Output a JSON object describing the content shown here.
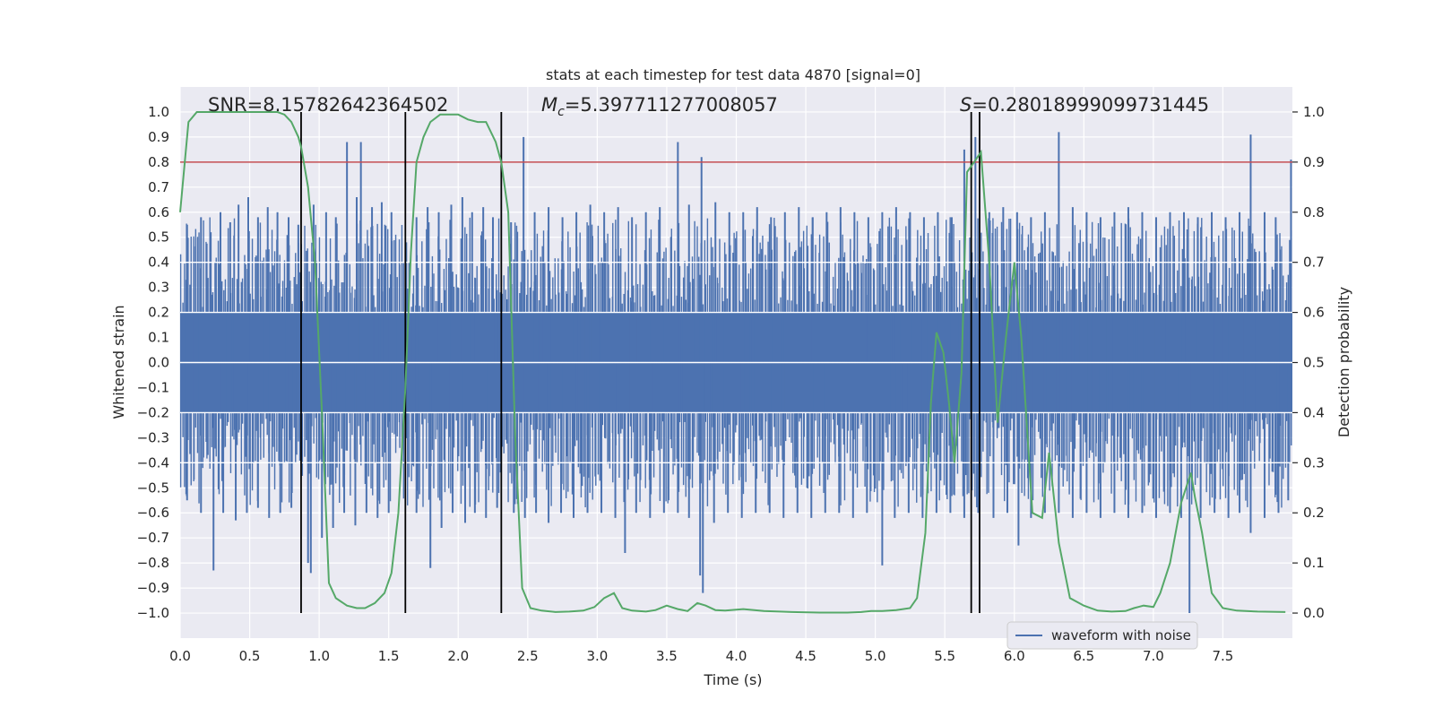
{
  "chart_data": {
    "type": "line",
    "title": "stats at each timestep for test data 4870 [signal=0]",
    "xlabel": "Time (s)",
    "ylabel": "Whitened strain",
    "y2label": "Detection probability",
    "xlim": [
      0.0,
      8.0
    ],
    "ylim": [
      -1.1,
      1.1
    ],
    "y2lim": [
      -0.05,
      1.05
    ],
    "grid": true,
    "xticks": [
      0.0,
      0.5,
      1.0,
      1.5,
      2.0,
      2.5,
      3.0,
      3.5,
      4.0,
      4.5,
      5.0,
      5.5,
      6.0,
      6.5,
      7.0,
      7.5
    ],
    "xtick_labels": [
      "0.0",
      "0.5",
      "1.0",
      "1.5",
      "2.0",
      "2.5",
      "3.0",
      "3.5",
      "4.0",
      "4.5",
      "5.0",
      "5.5",
      "6.0",
      "6.5",
      "7.0",
      "7.5"
    ],
    "yticks": [
      1.0,
      0.9,
      0.8,
      0.7,
      0.6,
      0.5,
      0.4,
      0.3,
      0.2,
      0.1,
      0.0,
      -0.1,
      -0.2,
      -0.3,
      -0.4,
      -0.5,
      -0.6,
      -0.7,
      -0.8,
      -0.9,
      -1.0
    ],
    "ytick_labels": [
      "1.0",
      "0.9",
      "0.8",
      "0.7",
      "0.6",
      "0.5",
      "0.4",
      "0.3",
      "0.2",
      "0.1",
      "0.0",
      "−0.1",
      "−0.2",
      "−0.3",
      "−0.4",
      "−0.5",
      "−0.6",
      "−0.7",
      "−0.8",
      "−0.9",
      "−1.0"
    ],
    "y2ticks": [
      1.0,
      0.9,
      0.8,
      0.7,
      0.6,
      0.5,
      0.4,
      0.3,
      0.2,
      0.1,
      0.0
    ],
    "y2tick_labels": [
      "1.0",
      "0.9",
      "0.8",
      "0.7",
      "0.6",
      "0.5",
      "0.4",
      "0.3",
      "0.2",
      "0.1",
      "0.0"
    ],
    "annotations": {
      "snr": "SNR=8.15782642364502",
      "mc_symbol": "M",
      "mc_sub": "c",
      "mc_value": "=5.397711277008057",
      "s_symbol": "S",
      "s_value": "=0.28018999099731445"
    },
    "legend": {
      "label": "waveform with noise",
      "placement": "lower-right"
    },
    "threshold": {
      "value": 0.9,
      "axis": "y2",
      "color": "#c44e52"
    },
    "vlines": [
      0.87,
      1.62,
      2.31,
      5.69,
      5.75
    ],
    "noise_series": {
      "name": "waveform with noise",
      "color": "#4c72b0",
      "band": [
        -0.2,
        0.2
      ],
      "spikes_up": [
        [
          0.05,
          0.55
        ],
        [
          0.15,
          0.58
        ],
        [
          0.22,
          0.52
        ],
        [
          0.29,
          0.6
        ],
        [
          0.36,
          0.56
        ],
        [
          0.42,
          0.63
        ],
        [
          0.49,
          0.66
        ],
        [
          0.56,
          0.58
        ],
        [
          0.63,
          0.62
        ],
        [
          0.7,
          0.6
        ],
        [
          0.78,
          0.58
        ],
        [
          0.85,
          0.55
        ],
        [
          0.96,
          0.63
        ],
        [
          1.05,
          0.6
        ],
        [
          1.12,
          0.58
        ],
        [
          1.2,
          0.88
        ],
        [
          1.27,
          0.66
        ],
        [
          1.3,
          0.88
        ],
        [
          1.38,
          0.62
        ],
        [
          1.45,
          0.64
        ],
        [
          1.52,
          0.6
        ],
        [
          1.7,
          0.58
        ],
        [
          1.78,
          0.62
        ],
        [
          1.86,
          0.6
        ],
        [
          1.95,
          0.63
        ],
        [
          2.03,
          0.66
        ],
        [
          2.1,
          0.6
        ],
        [
          2.18,
          0.62
        ],
        [
          2.25,
          0.58
        ],
        [
          2.38,
          0.56
        ],
        [
          2.47,
          0.9
        ],
        [
          2.55,
          0.6
        ],
        [
          2.65,
          0.62
        ],
        [
          2.75,
          0.58
        ],
        [
          2.85,
          0.6
        ],
        [
          2.95,
          0.63
        ],
        [
          3.05,
          0.6
        ],
        [
          3.15,
          0.62
        ],
        [
          3.25,
          0.58
        ],
        [
          3.35,
          0.6
        ],
        [
          3.45,
          0.62
        ],
        [
          3.58,
          0.88
        ],
        [
          3.66,
          0.63
        ],
        [
          3.75,
          0.82
        ],
        [
          3.85,
          0.64
        ],
        [
          3.95,
          0.6
        ],
        [
          4.05,
          0.6
        ],
        [
          4.15,
          0.62
        ],
        [
          4.25,
          0.58
        ],
        [
          4.35,
          0.6
        ],
        [
          4.45,
          0.62
        ],
        [
          4.55,
          0.58
        ],
        [
          4.65,
          0.6
        ],
        [
          4.75,
          0.62
        ],
        [
          4.85,
          0.6
        ],
        [
          4.95,
          0.58
        ],
        [
          5.05,
          0.6
        ],
        [
          5.15,
          0.62
        ],
        [
          5.25,
          0.6
        ],
        [
          5.35,
          0.58
        ],
        [
          5.45,
          0.6
        ],
        [
          5.55,
          0.58
        ],
        [
          5.64,
          0.85
        ],
        [
          5.72,
          0.9
        ],
        [
          5.82,
          0.6
        ],
        [
          5.92,
          0.62
        ],
        [
          6.02,
          0.6
        ],
        [
          6.12,
          0.58
        ],
        [
          6.22,
          0.6
        ],
        [
          6.32,
          0.92
        ],
        [
          6.42,
          0.62
        ],
        [
          6.52,
          0.6
        ],
        [
          6.62,
          0.58
        ],
        [
          6.72,
          0.6
        ],
        [
          6.82,
          0.62
        ],
        [
          6.92,
          0.6
        ],
        [
          7.02,
          0.58
        ],
        [
          7.12,
          0.6
        ],
        [
          7.22,
          0.6
        ],
        [
          7.32,
          0.58
        ],
        [
          7.42,
          0.6
        ],
        [
          7.52,
          0.58
        ],
        [
          7.62,
          0.6
        ],
        [
          7.7,
          0.91
        ],
        [
          7.8,
          0.6
        ],
        [
          7.88,
          0.58
        ],
        [
          7.99,
          0.81
        ]
      ],
      "spikes_down": [
        [
          0.05,
          -0.55
        ],
        [
          0.15,
          -0.6
        ],
        [
          0.24,
          -0.83
        ],
        [
          0.31,
          -0.6
        ],
        [
          0.4,
          -0.63
        ],
        [
          0.48,
          -0.6
        ],
        [
          0.56,
          -0.58
        ],
        [
          0.64,
          -0.62
        ],
        [
          0.72,
          -0.6
        ],
        [
          0.8,
          -0.58
        ],
        [
          0.92,
          -0.8
        ],
        [
          0.94,
          -0.84
        ],
        [
          1.02,
          -0.7
        ],
        [
          1.1,
          -0.66
        ],
        [
          1.18,
          -0.6
        ],
        [
          1.26,
          -0.65
        ],
        [
          1.34,
          -0.6
        ],
        [
          1.42,
          -0.62
        ],
        [
          1.5,
          -0.6
        ],
        [
          1.7,
          -0.6
        ],
        [
          1.8,
          -0.82
        ],
        [
          1.88,
          -0.66
        ],
        [
          1.96,
          -0.6
        ],
        [
          2.05,
          -0.64
        ],
        [
          2.12,
          -0.6
        ],
        [
          2.2,
          -0.62
        ],
        [
          2.28,
          -0.58
        ],
        [
          2.4,
          -0.6
        ],
        [
          2.48,
          -0.62
        ],
        [
          2.56,
          -0.6
        ],
        [
          2.65,
          -0.64
        ],
        [
          2.74,
          -0.6
        ],
        [
          2.83,
          -0.62
        ],
        [
          2.93,
          -0.6
        ],
        [
          3.03,
          -0.6
        ],
        [
          3.13,
          -0.62
        ],
        [
          3.2,
          -0.76
        ],
        [
          3.28,
          -0.6
        ],
        [
          3.38,
          -0.62
        ],
        [
          3.48,
          -0.6
        ],
        [
          3.58,
          -0.6
        ],
        [
          3.66,
          -0.62
        ],
        [
          3.74,
          -0.85
        ],
        [
          3.76,
          -0.92
        ],
        [
          3.84,
          -0.64
        ],
        [
          3.94,
          -0.6
        ],
        [
          4.04,
          -0.62
        ],
        [
          4.14,
          -0.6
        ],
        [
          4.24,
          -0.6
        ],
        [
          4.34,
          -0.62
        ],
        [
          4.44,
          -0.6
        ],
        [
          4.54,
          -0.62
        ],
        [
          4.64,
          -0.6
        ],
        [
          4.74,
          -0.6
        ],
        [
          4.84,
          -0.62
        ],
        [
          4.94,
          -0.6
        ],
        [
          5.05,
          -0.81
        ],
        [
          5.14,
          -0.62
        ],
        [
          5.24,
          -0.6
        ],
        [
          5.34,
          -0.62
        ],
        [
          5.44,
          -0.6
        ],
        [
          5.54,
          -0.6
        ],
        [
          5.64,
          -0.62
        ],
        [
          5.74,
          -0.6
        ],
        [
          5.85,
          -0.62
        ],
        [
          5.95,
          -0.6
        ],
        [
          6.03,
          -0.73
        ],
        [
          6.12,
          -0.62
        ],
        [
          6.22,
          -0.6
        ],
        [
          6.32,
          -0.6
        ],
        [
          6.42,
          -0.62
        ],
        [
          6.52,
          -0.6
        ],
        [
          6.62,
          -0.62
        ],
        [
          6.72,
          -0.6
        ],
        [
          6.82,
          -0.62
        ],
        [
          6.92,
          -0.6
        ],
        [
          7.02,
          -0.62
        ],
        [
          7.12,
          -0.6
        ],
        [
          7.2,
          -0.62
        ],
        [
          7.26,
          -1.0
        ],
        [
          7.34,
          -0.62
        ],
        [
          7.44,
          -0.6
        ],
        [
          7.54,
          -0.62
        ],
        [
          7.62,
          -0.6
        ],
        [
          7.7,
          -0.68
        ],
        [
          7.8,
          -0.62
        ],
        [
          7.9,
          -0.6
        ],
        [
          7.97,
          -0.55
        ]
      ]
    },
    "probability_series": {
      "name": "detection probability",
      "color": "#55a868",
      "x": [
        0.0,
        0.06,
        0.12,
        0.2,
        0.3,
        0.4,
        0.5,
        0.6,
        0.7,
        0.75,
        0.8,
        0.85,
        0.87,
        0.92,
        0.97,
        1.02,
        1.07,
        1.12,
        1.2,
        1.27,
        1.33,
        1.4,
        1.47,
        1.52,
        1.57,
        1.62,
        1.66,
        1.7,
        1.75,
        1.8,
        1.87,
        1.94,
        2.0,
        2.07,
        2.14,
        2.2,
        2.27,
        2.31,
        2.36,
        2.41,
        2.46,
        2.52,
        2.6,
        2.7,
        2.8,
        2.9,
        2.98,
        3.05,
        3.12,
        3.18,
        3.25,
        3.35,
        3.42,
        3.5,
        3.58,
        3.65,
        3.72,
        3.78,
        3.85,
        3.92,
        4.05,
        4.2,
        4.4,
        4.6,
        4.8,
        4.9,
        4.97,
        5.05,
        5.15,
        5.25,
        5.3,
        5.36,
        5.4,
        5.44,
        5.49,
        5.53,
        5.57,
        5.62,
        5.66,
        5.71,
        5.76,
        5.82,
        5.88,
        5.94,
        6.0,
        6.05,
        6.13,
        6.2,
        6.25,
        6.32,
        6.4,
        6.5,
        6.6,
        6.7,
        6.8,
        6.86,
        6.93,
        7.0,
        7.05,
        7.12,
        7.2,
        7.27,
        7.3,
        7.35,
        7.42,
        7.5,
        7.6,
        7.75,
        7.95
      ],
      "y": [
        0.8,
        0.98,
        1.0,
        1.0,
        1.0,
        1.0,
        1.0,
        1.0,
        1.0,
        0.995,
        0.98,
        0.95,
        0.93,
        0.85,
        0.7,
        0.4,
        0.06,
        0.03,
        0.015,
        0.01,
        0.01,
        0.02,
        0.04,
        0.08,
        0.2,
        0.45,
        0.72,
        0.9,
        0.95,
        0.98,
        0.995,
        0.995,
        0.995,
        0.985,
        0.98,
        0.98,
        0.94,
        0.9,
        0.8,
        0.35,
        0.05,
        0.01,
        0.005,
        0.002,
        0.003,
        0.005,
        0.012,
        0.03,
        0.04,
        0.01,
        0.005,
        0.003,
        0.006,
        0.015,
        0.008,
        0.004,
        0.02,
        0.015,
        0.006,
        0.005,
        0.008,
        0.004,
        0.002,
        0.001,
        0.001,
        0.002,
        0.004,
        0.004,
        0.006,
        0.01,
        0.03,
        0.16,
        0.42,
        0.56,
        0.52,
        0.42,
        0.3,
        0.48,
        0.88,
        0.9,
        0.92,
        0.7,
        0.38,
        0.55,
        0.7,
        0.55,
        0.2,
        0.19,
        0.32,
        0.14,
        0.03,
        0.015,
        0.005,
        0.003,
        0.004,
        0.01,
        0.015,
        0.012,
        0.04,
        0.1,
        0.22,
        0.28,
        0.23,
        0.16,
        0.04,
        0.01,
        0.005,
        0.003,
        0.002
      ]
    }
  }
}
